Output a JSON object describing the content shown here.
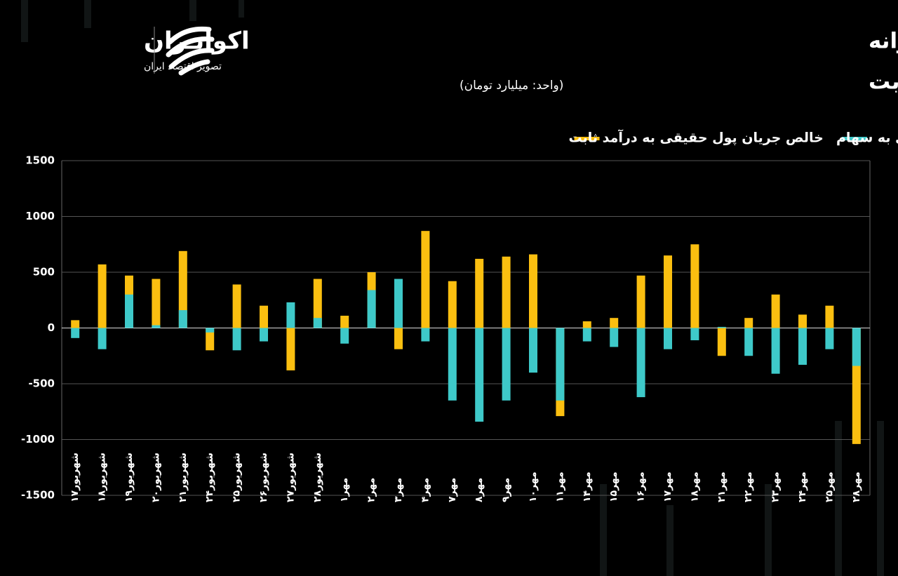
{
  "brand": {
    "name": "اکوایـران",
    "tagline": "تصویر اقتصاد ایران"
  },
  "chart_data": {
    "type": "bar",
    "title": "روند جریان پول حقیقی روزانه",
    "subtitle": "در سهام و صندوق‌های درآمد ثابت",
    "unit": "(واحد: میلیارد تومان)",
    "categories": [
      "شهریور۱۷",
      "شهریور۱۸",
      "شهریور۱۹",
      "شهریور۲۰",
      "شهریور۲۱",
      "شهریور۲۴",
      "شهریور۲۵",
      "شهریور۲۶",
      "شهریور۲۷",
      "شهریور۲۸",
      "مهر۱",
      "مهر۲",
      "مهر۳",
      "مهر۴",
      "مهر۷",
      "مهر۸",
      "مهر۹",
      "مهر۱۰",
      "مهر۱۱",
      "مهر۱۴",
      "مهر۱۵",
      "مهر۱۶",
      "مهر۱۷",
      "مهر۱۸",
      "مهر۲۱",
      "مهر۲۲",
      "مهر۲۳",
      "مهر۲۴",
      "مهر۲۵",
      "مهر۲۸"
    ],
    "series": [
      {
        "name": "خالص جریان پول حقیقی به درآمد ثابت",
        "color": "#fbbf10",
        "values": [
          70,
          570,
          470,
          440,
          690,
          -200,
          390,
          200,
          -380,
          440,
          110,
          500,
          -190,
          870,
          420,
          620,
          640,
          660,
          -790,
          60,
          90,
          470,
          650,
          750,
          -250,
          90,
          300,
          120,
          200,
          -1040
        ]
      },
      {
        "name": "خالص جریان پول حقیقی به سهام",
        "color": "#3ec9c9",
        "values": [
          -90,
          -190,
          300,
          25,
          160,
          -40,
          -200,
          -120,
          230,
          90,
          -140,
          340,
          440,
          -120,
          -650,
          -840,
          -650,
          -400,
          -650,
          -120,
          -170,
          -620,
          -190,
          -110,
          10,
          -250,
          -410,
          -330,
          -190,
          -340
        ]
      }
    ],
    "ylim": [
      -1500,
      1500
    ],
    "yticks": [
      1500,
      1000,
      500,
      0,
      -500,
      -1000,
      -1500
    ],
    "grid": true
  }
}
